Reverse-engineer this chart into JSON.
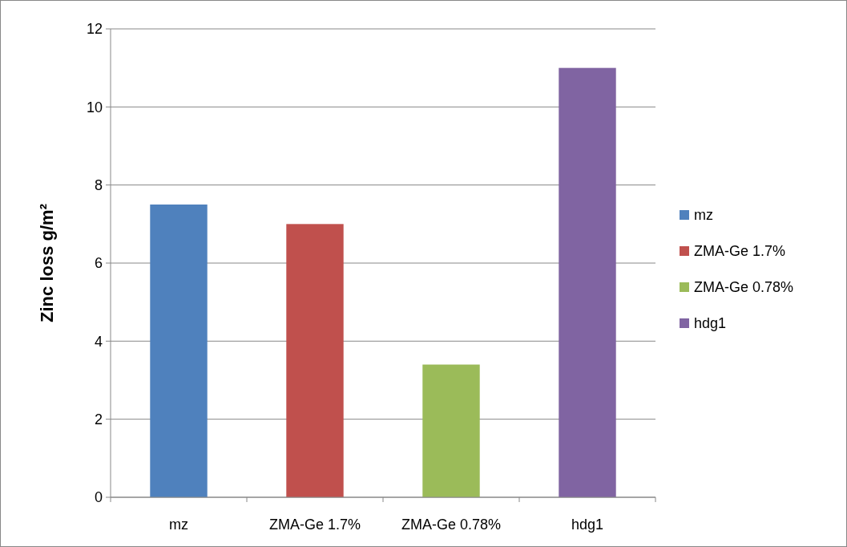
{
  "chart_data": {
    "type": "bar",
    "ylabel": "Zinc loss g/m²",
    "categories": [
      "mz",
      "ZMA-Ge 1.7%",
      "ZMA-Ge 0.78%",
      "hdg1"
    ],
    "series": [
      {
        "name": "mz",
        "color": "#4f81bd",
        "values": [
          7.5,
          null,
          null,
          null
        ]
      },
      {
        "name": "ZMA-Ge 1.7%",
        "color": "#c0504d",
        "values": [
          null,
          7.0,
          null,
          null
        ]
      },
      {
        "name": "ZMA-Ge 0.78%",
        "color": "#9bbb59",
        "values": [
          null,
          null,
          3.4,
          null
        ]
      },
      {
        "name": "hdg1",
        "color": "#8064a2",
        "values": [
          null,
          null,
          null,
          11.0
        ]
      }
    ],
    "ylim": [
      0,
      12
    ],
    "yticks": [
      0,
      2,
      4,
      6,
      8,
      10,
      12
    ],
    "grid": "y",
    "legend": "right"
  }
}
